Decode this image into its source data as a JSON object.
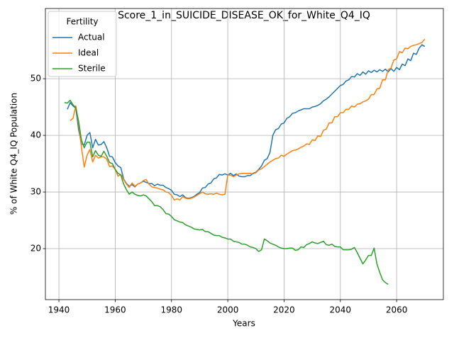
{
  "chart_data": {
    "type": "line",
    "title": "Score_1_in_SUICIDE_DISEASE_OK_for_White_Q4_IQ",
    "x_label": "Years",
    "y_label": "% of White Q4_IQ Population",
    "legend_title": "Fertility",
    "legend": "upper left",
    "grid": true,
    "xlim": [
      1935.2,
      2076.6
    ],
    "ylim": [
      11,
      62.4
    ],
    "xticks": [
      1940,
      1960,
      1980,
      2000,
      2020,
      2040,
      2060
    ],
    "yticks": [
      20,
      30,
      40,
      50
    ],
    "x": [
      1942,
      1943,
      1944,
      1945,
      1946,
      1947,
      1948,
      1949,
      1950,
      1951,
      1952,
      1953,
      1954,
      1955,
      1956,
      1957,
      1958,
      1959,
      1960,
      1961,
      1962,
      1963,
      1964,
      1965,
      1966,
      1967,
      1968,
      1969,
      1970,
      1971,
      1972,
      1973,
      1974,
      1975,
      1976,
      1977,
      1978,
      1979,
      1980,
      1981,
      1982,
      1983,
      1984,
      1985,
      1986,
      1987,
      1988,
      1989,
      1990,
      1991,
      1992,
      1993,
      1994,
      1995,
      1996,
      1997,
      1998,
      1999,
      2000,
      2001,
      2002,
      2003,
      2004,
      2005,
      2006,
      2007,
      2008,
      2009,
      2010,
      2011,
      2012,
      2013,
      2014,
      2015,
      2016,
      2017,
      2018,
      2019,
      2020,
      2021,
      2022,
      2023,
      2024,
      2025,
      2026,
      2027,
      2028,
      2029,
      2030,
      2031,
      2032,
      2033,
      2034,
      2035,
      2036,
      2037,
      2038,
      2039,
      2040,
      2041,
      2042,
      2043,
      2044,
      2045,
      2046,
      2047,
      2048,
      2049,
      2050,
      2051,
      2052,
      2053,
      2054,
      2055,
      2056,
      2057,
      2058,
      2059,
      2060,
      2061,
      2062,
      2063,
      2064,
      2065,
      2066,
      2067,
      2068,
      2069,
      2070
    ],
    "series": [
      {
        "name": "Actual",
        "color": "#1f77b4",
        "values": [
          null,
          44.6,
          45.8,
          45.2,
          44.8,
          41,
          38.5,
          38.3,
          40,
          40.5,
          37.8,
          39.3,
          38.3,
          38.4,
          38.9,
          37.8,
          36.3,
          36.2,
          35.2,
          34.6,
          34.3,
          32.3,
          31.5,
          31,
          31.3,
          30.9,
          31.4,
          31.6,
          31.9,
          31.7,
          31.5,
          31.5,
          31.1,
          31.4,
          31.2,
          31.2,
          30.8,
          30.6,
          30.3,
          29.6,
          29.5,
          29.2,
          29.5,
          29,
          28.9,
          29,
          29.2,
          29.6,
          29.9,
          30.7,
          30.8,
          31.4,
          31.6,
          32.3,
          32.5,
          33.1,
          33,
          33.2,
          33,
          33.3,
          32.9,
          33.2,
          32.8,
          32.7,
          32.7,
          32.9,
          32.9,
          33.3,
          33.5,
          34,
          34.6,
          35.6,
          35.9,
          37,
          40,
          41,
          41.2,
          42,
          42.2,
          43,
          43.3,
          43.9,
          44,
          44.3,
          44.5,
          44.7,
          44.7,
          44.7,
          45,
          45.1,
          45.3,
          45.6,
          46.1,
          46.4,
          46.8,
          47.3,
          47.8,
          48.3,
          48.8,
          49,
          49.6,
          49.8,
          50.4,
          50.3,
          50.9,
          50.6,
          51.2,
          50.8,
          51.4,
          51.1,
          51.5,
          51.2,
          51.6,
          51.3,
          51.7,
          51.2,
          51.8,
          51.3,
          52,
          51.6,
          52.6,
          52.3,
          53.5,
          53.2,
          54.5,
          54.3,
          55.4,
          56,
          55.7
        ]
      },
      {
        "name": "Ideal",
        "color": "#ff7f0e",
        "values": [
          null,
          null,
          42.6,
          43,
          45.2,
          42,
          38,
          34.4,
          36.5,
          37.5,
          35.3,
          36.5,
          36,
          36.2,
          36.2,
          35.8,
          34.5,
          34.6,
          34,
          32.8,
          33.1,
          32.2,
          31.4,
          30.8,
          31.6,
          31,
          31.4,
          31.6,
          32,
          32.2,
          31.4,
          30.9,
          30.8,
          30.7,
          30.5,
          30.4,
          30,
          29.9,
          29.4,
          28.6,
          28.8,
          28.6,
          29.2,
          28.9,
          28.8,
          28.9,
          29.1,
          29.4,
          29.7,
          30,
          29.7,
          29.6,
          29.7,
          29.6,
          29.8,
          29.6,
          29.5,
          29.6,
          33,
          33,
          32.7,
          33,
          33.2,
          33.3,
          33.3,
          33.3,
          33.3,
          33.2,
          33.4,
          33.9,
          34.1,
          34.5,
          34.9,
          35.3,
          35.6,
          35.9,
          36,
          36.5,
          36.3,
          36.7,
          37,
          37.3,
          37.4,
          37.6,
          37.9,
          38.1,
          38.5,
          38.4,
          39.2,
          39.1,
          39.9,
          39.8,
          40.9,
          41.1,
          42.2,
          42.2,
          43.3,
          43.3,
          44,
          44,
          44.6,
          44.6,
          45.2,
          45,
          45.5,
          45.6,
          45.9,
          46.1,
          46.4,
          47.2,
          47.2,
          48.2,
          48.3,
          49.8,
          49.8,
          51.6,
          51.9,
          53.3,
          53.5,
          54.8,
          54.6,
          55.4,
          55.3,
          55.7,
          55.9,
          56,
          56.2,
          56.4,
          57
        ]
      },
      {
        "name": "Sterile",
        "color": "#2ca02c",
        "values": [
          45.8,
          45.7,
          46.2,
          45.4,
          44.9,
          42.5,
          39.2,
          37.8,
          38.8,
          38.8,
          36.2,
          37.3,
          36.5,
          36.3,
          37.2,
          36.3,
          35.2,
          35,
          34,
          33.3,
          33,
          31.4,
          30.4,
          29.6,
          30,
          29.6,
          29.4,
          29.3,
          29.5,
          29.3,
          28.8,
          28.3,
          27.6,
          27.6,
          27.4,
          26.9,
          26.2,
          26.1,
          25.7,
          25.1,
          24.9,
          24.7,
          24.6,
          24.2,
          24,
          23.8,
          23.5,
          23.4,
          23.3,
          23.4,
          23,
          23,
          22.7,
          22.4,
          22.3,
          22.3,
          22,
          21.9,
          21.7,
          21.7,
          21.3,
          21.2,
          21.1,
          20.8,
          20.8,
          20.6,
          20.3,
          20.2,
          20,
          19.5,
          19.8,
          21.7,
          21.4,
          21,
          20.8,
          20.6,
          20.3,
          20.1,
          20,
          20,
          20.1,
          20.1,
          19.7,
          19.8,
          20.3,
          20.2,
          20.7,
          20.9,
          21.2,
          21,
          20.9,
          21.1,
          21.3,
          20.7,
          20.6,
          20.8,
          20.4,
          20.3,
          20.3,
          19.8,
          19.8,
          19.8,
          19.9,
          20.2,
          19.3,
          18.3,
          17.3,
          18,
          18.8,
          18.8,
          20.1,
          17.3,
          15.8,
          14.5,
          14,
          13.7,
          null,
          null,
          null,
          null,
          null,
          null,
          null,
          null,
          null,
          null,
          null,
          null,
          null
        ]
      }
    ]
  }
}
